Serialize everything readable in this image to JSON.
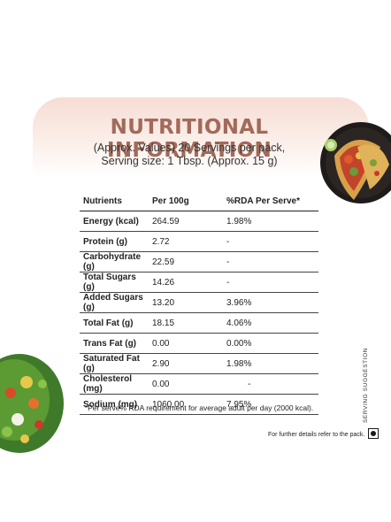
{
  "title": "NUTRITIONAL INFORMATION",
  "subtitle_line1": "(Approx. Values) 20 Servings per pack,",
  "subtitle_line2": "Serving size: 1 Tbsp. (Approx. 15 g)",
  "table": {
    "headers": [
      "Nutrients",
      "Per 100g",
      "%RDA Per Serve*"
    ],
    "rows": [
      [
        "Energy (kcal)",
        "264.59",
        "1.98%"
      ],
      [
        "Protein (g)",
        "2.72",
        "-"
      ],
      [
        "Carbohydrate (g)",
        "22.59",
        "-"
      ],
      [
        "Total Sugars (g)",
        "14.26",
        "-"
      ],
      [
        "Added Sugars (g)",
        "13.20",
        "3.96%"
      ],
      [
        "Total Fat (g)",
        "18.15",
        "4.06%"
      ],
      [
        "Trans Fat (g)",
        "0.00",
        "0.00%"
      ],
      [
        "Saturated Fat (g)",
        "2.90",
        "1.98%"
      ],
      [
        "Cholesterol (mg)",
        "0.00",
        "-"
      ],
      [
        "Sodium (mg)",
        "1060.00",
        "7.95%"
      ]
    ]
  },
  "footnote": "*Per serve% RDA requirement for average adult per day (2000 kcal).",
  "details_note": "For further details refer to the pack.",
  "serving_suggestion": "SERVING SUGGESTION",
  "colors": {
    "title": "#a26a5a",
    "card_top": "#f6ddd5"
  }
}
